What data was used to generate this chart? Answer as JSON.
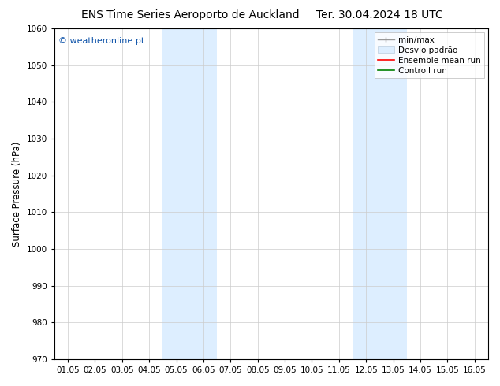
{
  "title_left": "ENS Time Series Aeroporto de Auckland",
  "title_right": "Ter. 30.04.2024 18 UTC",
  "ylabel": "Surface Pressure (hPa)",
  "watermark": "© weatheronline.pt",
  "ylim": [
    970,
    1060
  ],
  "yticks": [
    970,
    980,
    990,
    1000,
    1010,
    1020,
    1030,
    1040,
    1050,
    1060
  ],
  "xlim": [
    -0.5,
    15.5
  ],
  "xtick_labels": [
    "01.05",
    "02.05",
    "03.05",
    "04.05",
    "05.05",
    "06.05",
    "07.05",
    "08.05",
    "09.05",
    "10.05",
    "11.05",
    "12.05",
    "13.05",
    "14.05",
    "15.05",
    "16.05"
  ],
  "xtick_positions": [
    0,
    1,
    2,
    3,
    4,
    5,
    6,
    7,
    8,
    9,
    10,
    11,
    12,
    13,
    14,
    15
  ],
  "shaded_bands": [
    {
      "xmin": 3.5,
      "xmax": 5.5,
      "color": "#ddeeff"
    },
    {
      "xmin": 10.5,
      "xmax": 12.5,
      "color": "#ddeeff"
    }
  ],
  "bg_color": "#ffffff",
  "plot_bg_color": "#ffffff",
  "watermark_color": "#1155aa",
  "title_fontsize": 10,
  "tick_fontsize": 7.5,
  "ylabel_fontsize": 8.5,
  "legend_fontsize": 7.5,
  "watermark_fontsize": 8
}
